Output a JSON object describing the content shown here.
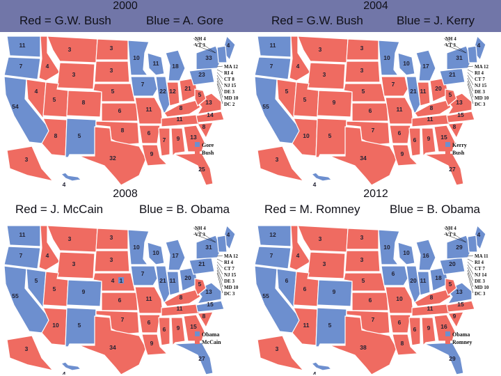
{
  "colors": {
    "red": "#ef6b61",
    "blue": "#6d8fcf",
    "header_bg": "#7176a8"
  },
  "panels": [
    {
      "year": "2000",
      "red_label": "Red = G.W. Bush",
      "blue_label": "Blue = A. Gore",
      "legend": {
        "blue": "Gore",
        "red": "Bush"
      },
      "west_coast": "blue",
      "southwest": "red",
      "nm": "blue",
      "iowa_minn": "blue",
      "midwest": "blue",
      "nh": "red",
      "co": "red",
      "va": "red",
      "fl": "red",
      "votes": {
        "wa": "11",
        "or": "7",
        "ca": "54",
        "nv": "4",
        "id": "4",
        "az": "8",
        "mt": "3",
        "wy": "3",
        "ut": "5",
        "co": "8",
        "nm": "5",
        "nd": "3",
        "sd": "3",
        "ne": "5",
        "ks": "6",
        "ok": "8",
        "tx": "32",
        "mn": "10",
        "ia": "7",
        "mo": "11",
        "ar": "6",
        "la": "9",
        "wi": "11",
        "il": "22",
        "mi": "18",
        "in": "12",
        "oh": "21",
        "ky": "8",
        "tn": "11",
        "ms": "7",
        "al": "9",
        "ga": "13",
        "fl": "25",
        "sc": "8",
        "nc": "14",
        "va": "13",
        "wv": "5",
        "pa": "23",
        "ny": "33",
        "me": "4",
        "ak": "3",
        "hi": "4"
      },
      "ne_labels": [
        "NH 4",
        "VT 3",
        "MA 12",
        "RI 4",
        "CT 8",
        "NJ 15",
        "DE 3",
        "MD 10",
        "DC 2"
      ]
    },
    {
      "year": "2004",
      "red_label": "Red = G.W. Bush",
      "blue_label": "Blue = J. Kerry",
      "legend": {
        "blue": "Kerry",
        "red": "Bush"
      },
      "west_coast": "blue",
      "southwest": "red",
      "nm": "red",
      "iowa_minn": "mixed",
      "midwest": "blue",
      "nh": "blue",
      "co": "red",
      "va": "red",
      "fl": "red",
      "votes": {
        "wa": "11",
        "or": "7",
        "ca": "55",
        "nv": "5",
        "id": "4",
        "az": "10",
        "mt": "3",
        "wy": "3",
        "ut": "5",
        "co": "9",
        "nm": "5",
        "nd": "3",
        "sd": "3",
        "ne": "5",
        "ks": "6",
        "ok": "7",
        "tx": "34",
        "mn": "10",
        "ia": "7",
        "mo": "11",
        "ar": "6",
        "la": "9",
        "wi": "10",
        "il": "21",
        "mi": "17",
        "in": "11",
        "oh": "20",
        "ky": "8",
        "tn": "11",
        "ms": "6",
        "al": "9",
        "ga": "15",
        "fl": "27",
        "sc": "8",
        "nc": "15",
        "va": "13",
        "wv": "5",
        "pa": "21",
        "ny": "31",
        "me": "4",
        "ak": "3",
        "hi": "4"
      },
      "ne_labels": [
        "NH 4",
        "VT 3",
        "MA 12",
        "RI 4",
        "CT 7",
        "NJ 15",
        "DE 3",
        "MD 10",
        "DC 3"
      ]
    },
    {
      "year": "2008",
      "red_label": "Red = J. McCain",
      "blue_label": "Blue = B. Obama",
      "legend": {
        "blue": "Obama",
        "red": "McCain"
      },
      "west_coast": "blue",
      "southwest": "mixed",
      "nm": "blue",
      "iowa_minn": "blue",
      "midwest": "blue",
      "nh": "blue",
      "co": "blue",
      "va": "blue",
      "fl": "blue",
      "votes": {
        "wa": "11",
        "or": "7",
        "ca": "55",
        "nv": "5",
        "id": "4",
        "az": "10",
        "mt": "3",
        "wy": "3",
        "ut": "5",
        "co": "9",
        "nm": "5",
        "nd": "3",
        "sd": "3",
        "ne": "4",
        "ks": "6",
        "ok": "7",
        "tx": "34",
        "mn": "10",
        "ia": "7",
        "mo": "11",
        "ar": "6",
        "la": "9",
        "wi": "10",
        "il": "21",
        "mi": "17",
        "in": "11",
        "oh": "20",
        "ky": "8",
        "tn": "11",
        "ms": "6",
        "al": "9",
        "ga": "15",
        "fl": "27",
        "sc": "8",
        "nc": "15",
        "va": "13",
        "wv": "5",
        "pa": "21",
        "ny": "31",
        "me": "4",
        "ak": "3",
        "hi": "4",
        "ne2": "1"
      },
      "ne_labels": [
        "NH 4",
        "VT 3",
        "MA 12",
        "RI 4",
        "CT 7",
        "NJ 15",
        "DE 3",
        "MD 10",
        "DC 3"
      ]
    },
    {
      "year": "2012",
      "red_label": "Red = M. Romney",
      "blue_label": "Blue = B. Obama",
      "legend": {
        "blue": "Obama",
        "red": "Romney"
      },
      "west_coast": "blue",
      "southwest": "mixed",
      "nm": "blue",
      "iowa_minn": "blue",
      "midwest": "blue",
      "nh": "blue",
      "co": "blue",
      "va": "blue",
      "fl": "blue",
      "votes": {
        "wa": "12",
        "or": "7",
        "ca": "55",
        "nv": "6",
        "id": "4",
        "az": "11",
        "mt": "3",
        "wy": "3",
        "ut": "6",
        "co": "9",
        "nm": "5",
        "nd": "3",
        "sd": "3",
        "ne": "5",
        "ks": "6",
        "ok": "7",
        "tx": "38",
        "mn": "10",
        "ia": "6",
        "mo": "10",
        "ar": "6",
        "la": "8",
        "wi": "10",
        "il": "20",
        "mi": "16",
        "in": "11",
        "oh": "18",
        "ky": "8",
        "tn": "11",
        "ms": "6",
        "al": "9",
        "ga": "16",
        "fl": "29",
        "sc": "9",
        "nc": "15",
        "va": "13",
        "wv": "5",
        "pa": "20",
        "ny": "29",
        "me": "4",
        "ak": "3",
        "hi": "4"
      },
      "ne_labels": [
        "NH 4",
        "VT 3",
        "MA 11",
        "RI 4",
        "CT 7",
        "NJ 14",
        "DE 3",
        "MD 10",
        "DC 3"
      ]
    }
  ]
}
